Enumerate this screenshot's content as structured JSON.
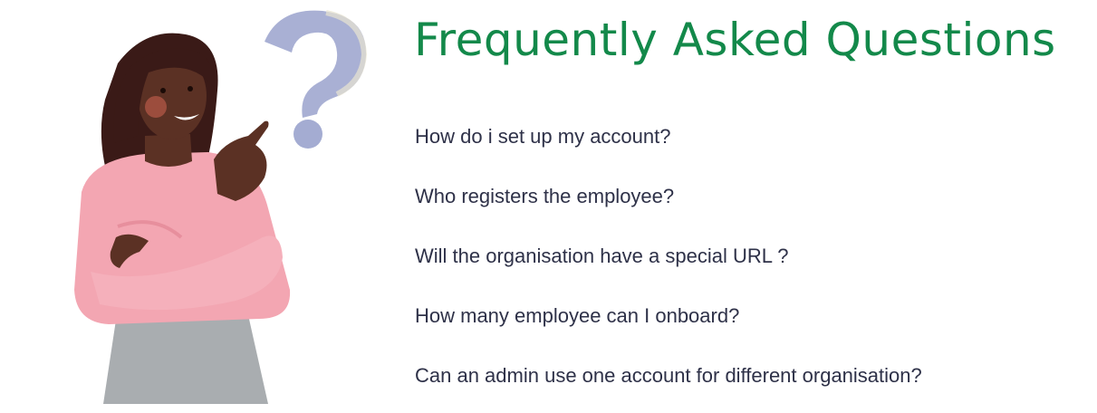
{
  "faq": {
    "title": "Frequently Asked Questions",
    "questions": [
      "How do i set up my account?",
      "Who registers the employee?",
      "Will the organisation have a special URL ?",
      "How many employee can I onboard?",
      "Can an admin use one account for different organisation?"
    ]
  },
  "illustration": {
    "icon": "woman-question-mark-illustration"
  },
  "colors": {
    "title": "#13894a",
    "question_text": "#2e3148",
    "question_mark": "#a4acd2",
    "sweater": "#f3a6b2",
    "skirt": "#a9adb0",
    "hair": "#3a1a17",
    "skin": "#5b3124"
  }
}
